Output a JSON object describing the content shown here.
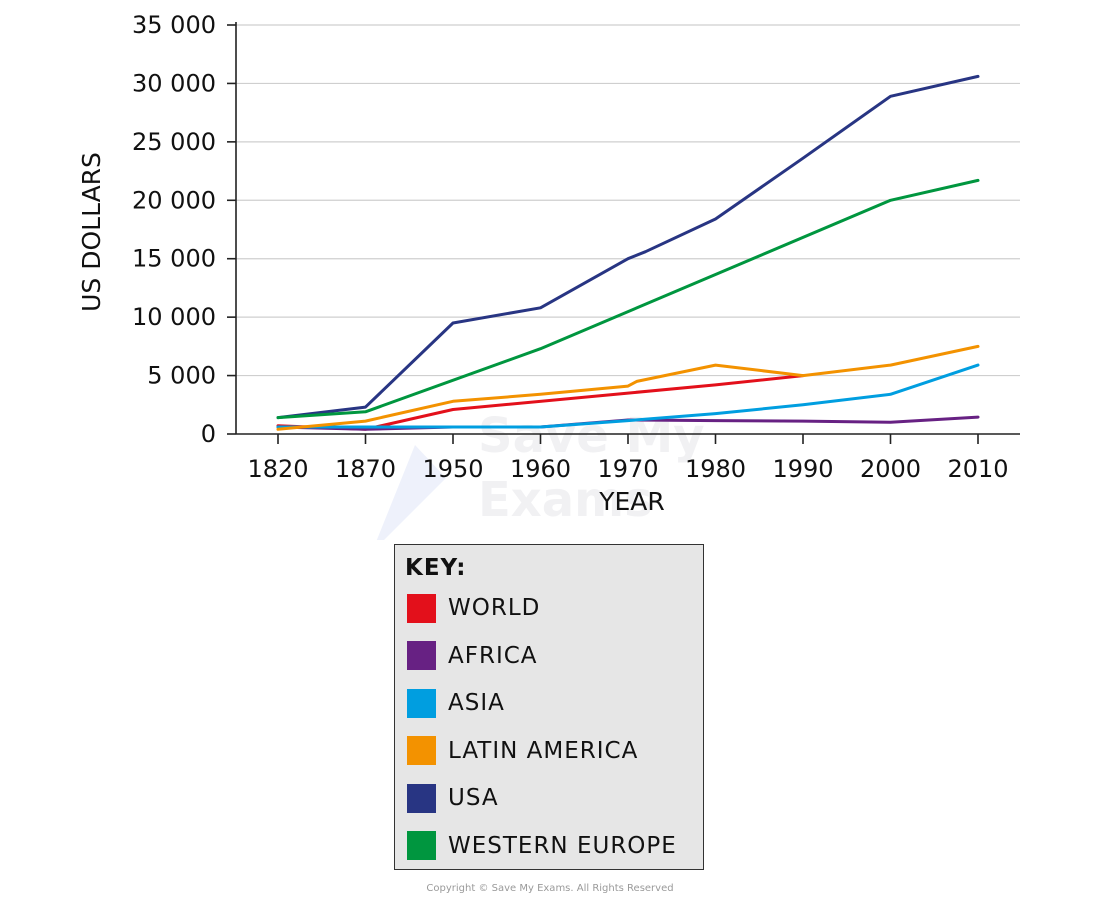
{
  "chart_data": {
    "type": "line",
    "title": "",
    "xlabel": "YEAR",
    "ylabel": "US DOLLARS",
    "categories": [
      "1820",
      "1870",
      "1950",
      "1960",
      "1970",
      "1980",
      "1990",
      "2000",
      "2010"
    ],
    "y_ticks": [
      0,
      5000,
      10000,
      15000,
      20000,
      25000,
      30000,
      35000
    ],
    "y_tick_labels": [
      "0",
      "5 000",
      "10 000",
      "15 000",
      "20 000",
      "25 000",
      "30 000",
      "35 000"
    ],
    "ylim": [
      0,
      35000
    ],
    "grid": "horizontal",
    "series": [
      {
        "name": "WORLD",
        "color": "#e3101b",
        "points": [
          [
            0,
            700
          ],
          [
            1,
            400
          ],
          [
            2,
            2100
          ],
          [
            4,
            3500
          ],
          [
            5,
            4200
          ],
          [
            6,
            5000
          ]
        ]
      },
      {
        "name": "AFRICA",
        "color": "#672183",
        "points": [
          [
            0,
            600
          ],
          [
            1,
            400
          ],
          [
            2,
            600
          ],
          [
            3,
            600
          ],
          [
            4,
            1200
          ],
          [
            5,
            1150
          ],
          [
            6,
            1100
          ],
          [
            7,
            1000
          ],
          [
            8,
            1450
          ]
        ]
      },
      {
        "name": "ASIA",
        "color": "#009ee0",
        "points": [
          [
            0,
            600
          ],
          [
            1,
            600
          ],
          [
            2,
            600
          ],
          [
            3,
            600
          ],
          [
            4,
            1150
          ],
          [
            5,
            1750
          ],
          [
            6,
            2500
          ],
          [
            7,
            3400
          ],
          [
            8,
            5900
          ]
        ]
      },
      {
        "name": "LATIN AMERICA",
        "color": "#f39200",
        "points": [
          [
            0,
            400
          ],
          [
            1,
            1100
          ],
          [
            2,
            2800
          ],
          [
            3,
            3400
          ],
          [
            4,
            4100
          ],
          [
            4.1,
            4500
          ],
          [
            5,
            5900
          ],
          [
            6,
            5000
          ],
          [
            7,
            5900
          ],
          [
            8,
            7500
          ]
        ]
      },
      {
        "name": "USA",
        "color": "#283583",
        "points": [
          [
            0,
            1400
          ],
          [
            1,
            2300
          ],
          [
            2,
            9500
          ],
          [
            3,
            10800
          ],
          [
            4,
            15000
          ],
          [
            4.2,
            15600
          ],
          [
            5,
            18400
          ],
          [
            6,
            23600
          ],
          [
            7,
            28900
          ],
          [
            8,
            30600
          ]
        ]
      },
      {
        "name": "WESTERN EUROPE",
        "color": "#00963f",
        "points": [
          [
            0,
            1400
          ],
          [
            1,
            1900
          ],
          [
            3,
            7300
          ],
          [
            7,
            20000
          ],
          [
            8,
            21700
          ]
        ]
      }
    ]
  },
  "key": {
    "title": "KEY:",
    "items": [
      {
        "label": "WORLD",
        "color": "#e3101b"
      },
      {
        "label": "AFRICA",
        "color": "#672183"
      },
      {
        "label": "ASIA",
        "color": "#009ee0"
      },
      {
        "label": "LATIN AMERICA",
        "color": "#f39200"
      },
      {
        "label": "USA",
        "color": "#283583"
      },
      {
        "label": "WESTERN EUROPE",
        "color": "#00963f"
      }
    ]
  },
  "watermark": {
    "line1": "Save My",
    "line2": "Exams"
  },
  "copyright": "Copyright © Save My Exams. All Rights Reserved"
}
